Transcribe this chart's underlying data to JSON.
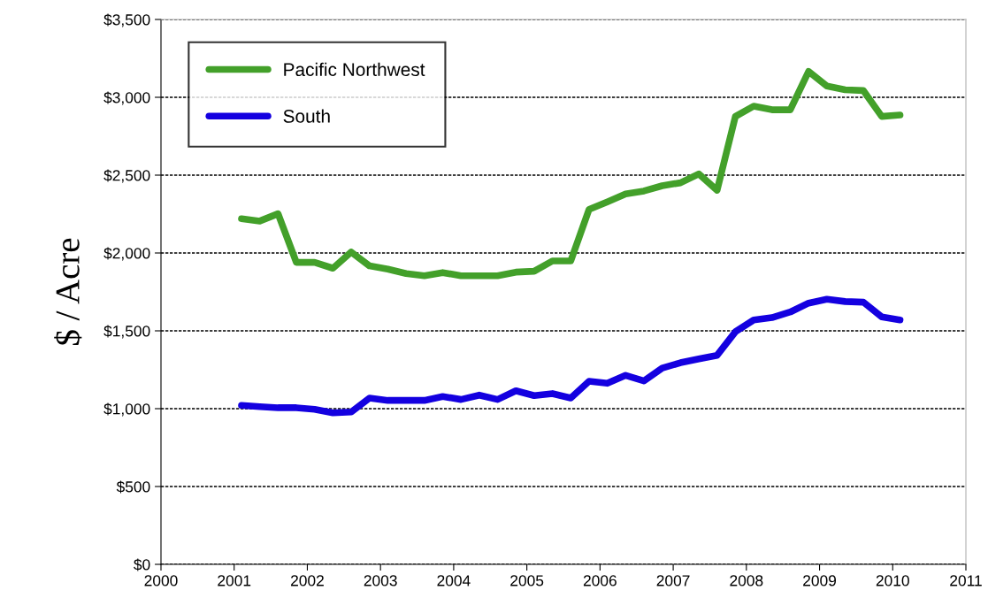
{
  "chart_data": {
    "type": "line",
    "ylabel": "$ / Acre",
    "x": [
      2001.1,
      2001.35,
      2001.6,
      2001.85,
      2002.1,
      2002.35,
      2002.6,
      2002.85,
      2003.1,
      2003.35,
      2003.6,
      2003.85,
      2004.1,
      2004.35,
      2004.6,
      2004.85,
      2005.1,
      2005.35,
      2005.6,
      2005.85,
      2006.1,
      2006.35,
      2006.6,
      2006.85,
      2007.1,
      2007.35,
      2007.6,
      2007.85,
      2008.1,
      2008.35,
      2008.6,
      2008.85,
      2009.1,
      2009.35,
      2009.6,
      2009.85,
      2010.1
    ],
    "series": [
      {
        "name": "Pacific Northwest",
        "color": "#43a02a",
        "values": [
          2220,
          2205,
          2252,
          1940,
          1940,
          1902,
          2006,
          1917,
          1896,
          1868,
          1854,
          1874,
          1854,
          1854,
          1854,
          1877,
          1883,
          1949,
          1949,
          2280,
          2328,
          2379,
          2398,
          2432,
          2451,
          2508,
          2403,
          2877,
          2943,
          2920,
          2920,
          3166,
          3072,
          3048,
          3043,
          2877,
          2886
        ]
      },
      {
        "name": "South",
        "color": "#1400e0",
        "values": [
          1021,
          1013,
          1006,
          1006,
          996,
          973,
          979,
          1068,
          1053,
          1053,
          1053,
          1078,
          1059,
          1087,
          1059,
          1115,
          1084,
          1097,
          1068,
          1176,
          1163,
          1214,
          1178,
          1261,
          1295,
          1320,
          1343,
          1494,
          1570,
          1585,
          1621,
          1678,
          1703,
          1688,
          1684,
          1589,
          1570
        ]
      }
    ],
    "xlim": [
      2000,
      2011
    ],
    "xticks": [
      2000,
      2001,
      2002,
      2003,
      2004,
      2005,
      2006,
      2007,
      2008,
      2009,
      2010,
      2011
    ],
    "ylim": [
      0,
      3500
    ],
    "yticks": [
      {
        "value": 0,
        "label": "$0"
      },
      {
        "value": 500,
        "label": "$500"
      },
      {
        "value": 1000,
        "label": "$1,000"
      },
      {
        "value": 1500,
        "label": "$1,500"
      },
      {
        "value": 2000,
        "label": "$2,000"
      },
      {
        "value": 2500,
        "label": "$2,500"
      },
      {
        "value": 3000,
        "label": "$3,000"
      },
      {
        "value": 3500,
        "label": "$3,500"
      }
    ],
    "grid": "y",
    "legend": "top left",
    "marker": "none",
    "line_style": "solid"
  }
}
